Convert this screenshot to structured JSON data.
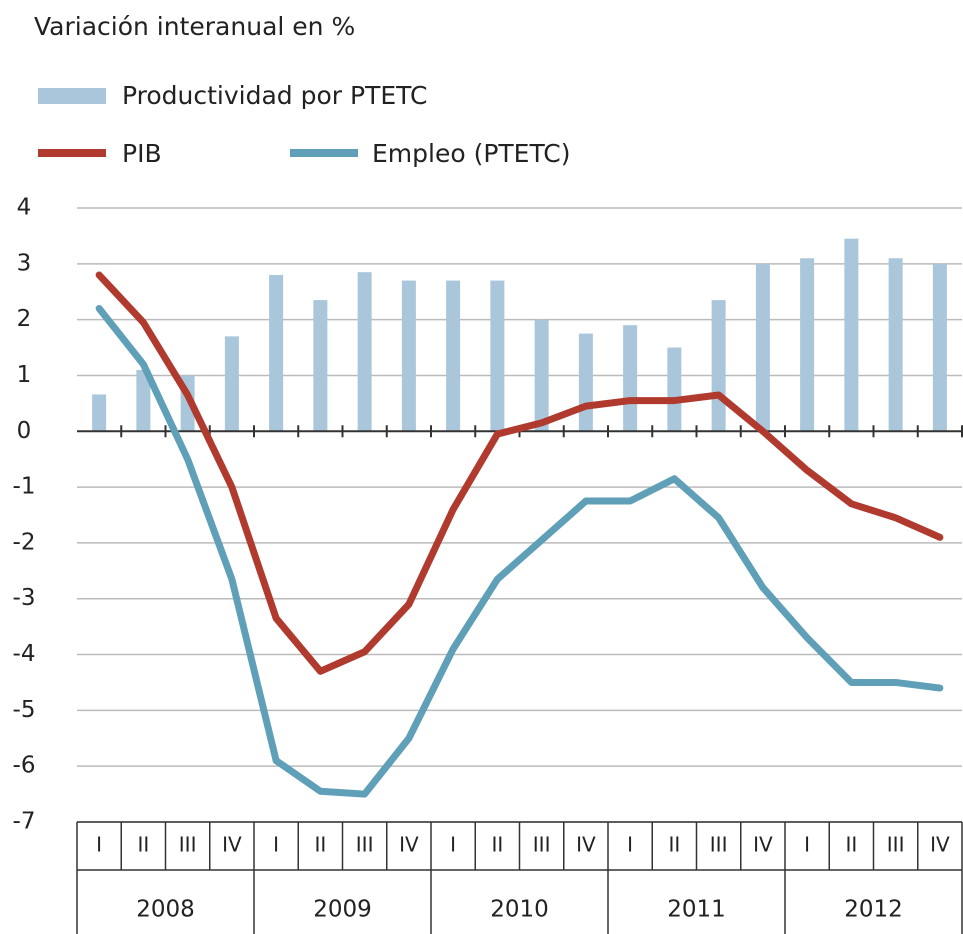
{
  "chart_data": {
    "type": "bar",
    "title": "Variación interanual en %",
    "categories": [
      "I",
      "II",
      "III",
      "IV",
      "I",
      "II",
      "III",
      "IV",
      "I",
      "II",
      "III",
      "IV",
      "I",
      "II",
      "III",
      "IV",
      "I",
      "II",
      "III",
      "IV"
    ],
    "years": [
      "2008",
      "2009",
      "2010",
      "2011",
      "2012"
    ],
    "series": [
      {
        "name": "Productividad por PTETC",
        "type": "bar",
        "color": "#a9c6da",
        "values": [
          0.66,
          1.1,
          1.0,
          1.7,
          2.8,
          2.35,
          2.85,
          2.7,
          2.7,
          2.7,
          2.0,
          1.75,
          1.9,
          1.5,
          2.35,
          3.0,
          3.1,
          3.45,
          3.1,
          3.0
        ]
      },
      {
        "name": "PIB",
        "type": "line",
        "color": "#b03a2e",
        "values": [
          2.8,
          1.95,
          0.65,
          -1.0,
          -3.35,
          -4.3,
          -3.95,
          -3.1,
          -1.4,
          -0.05,
          0.15,
          0.45,
          0.55,
          0.55,
          0.65,
          0.0,
          -0.7,
          -1.3,
          -1.55,
          -1.9
        ]
      },
      {
        "name": "Empleo (PTETC)",
        "type": "line",
        "color": "#5fa0b8",
        "values": [
          2.2,
          1.2,
          -0.5,
          -2.65,
          -5.9,
          -6.45,
          -6.5,
          -5.5,
          -3.9,
          -2.65,
          -1.95,
          -1.25,
          -1.25,
          -0.85,
          -1.55,
          -2.8,
          -3.7,
          -4.5,
          -4.5,
          -4.6
        ]
      }
    ],
    "ylim": [
      -7,
      4
    ],
    "yticks": [
      -7,
      -6,
      -5,
      -4,
      -3,
      -2,
      -1,
      0,
      1,
      2,
      3,
      4
    ],
    "grid": true
  }
}
